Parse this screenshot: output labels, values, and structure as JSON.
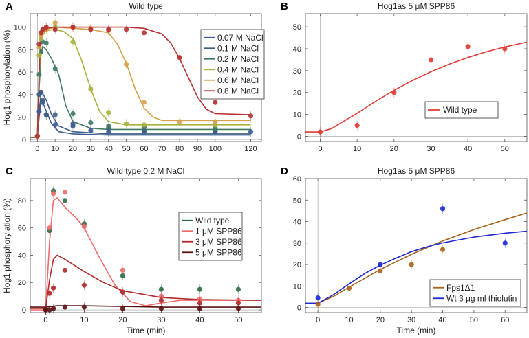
{
  "chart_data": [
    {
      "type": "line",
      "panel": "A",
      "title": "Wild type",
      "ylabel": "Hog1 phosphorylation (%)",
      "xlabel": "",
      "xlim": [
        -4,
        126
      ],
      "ylim": [
        -3,
        112
      ],
      "xticks": [
        0,
        10,
        20,
        30,
        40,
        50,
        60,
        70,
        80,
        90,
        100,
        120
      ],
      "yticks": [
        0,
        20,
        40,
        60,
        80,
        100
      ],
      "legend_position": "top-right",
      "series": [
        {
          "name": "0.07 M NaCl",
          "color": "#3a5a96",
          "x": [
            0,
            1,
            2,
            3,
            5,
            10,
            20,
            30,
            40,
            60,
            100,
            120
          ],
          "y": [
            3,
            25,
            42,
            33,
            22,
            13,
            12,
            8,
            7,
            7,
            7,
            7
          ],
          "curve": [
            [
              -4,
              2
            ],
            [
              0,
              2
            ],
            [
              1,
              20
            ],
            [
              2,
              36
            ],
            [
              3,
              33
            ],
            [
              5,
              25
            ],
            [
              8,
              14
            ],
            [
              12,
              7
            ],
            [
              20,
              5
            ],
            [
              40,
              4
            ],
            [
              120,
              4
            ]
          ]
        },
        {
          "name": "0.1 M NaCl",
          "color": "#3e5f85",
          "x": [
            0,
            1,
            2,
            3,
            5,
            10,
            20,
            40,
            60,
            100
          ],
          "y": [
            3,
            40,
            42,
            35,
            22,
            22,
            14,
            10,
            8,
            8
          ],
          "curve": [
            [
              -4,
              2
            ],
            [
              0,
              2
            ],
            [
              1,
              25
            ],
            [
              2,
              40
            ],
            [
              3,
              41
            ],
            [
              5,
              35
            ],
            [
              8,
              22
            ],
            [
              12,
              12
            ],
            [
              20,
              7
            ],
            [
              40,
              5
            ],
            [
              120,
              5
            ]
          ]
        },
        {
          "name": "0.2 M NaCl",
          "color": "#3e7a60",
          "x": [
            0,
            1,
            2,
            3,
            5,
            10,
            20,
            30,
            40,
            60,
            100
          ],
          "y": [
            3,
            58,
            78,
            87,
            86,
            63,
            23,
            15,
            12,
            11,
            10
          ],
          "curve": [
            [
              -4,
              2
            ],
            [
              0,
              2
            ],
            [
              1,
              45
            ],
            [
              2,
              75
            ],
            [
              3,
              83
            ],
            [
              5,
              80
            ],
            [
              8,
              72
            ],
            [
              12,
              58
            ],
            [
              16,
              30
            ],
            [
              20,
              16
            ],
            [
              30,
              10
            ],
            [
              40,
              9
            ],
            [
              120,
              9
            ]
          ]
        },
        {
          "name": "0.4 M NaCl",
          "color": "#a7b23a",
          "x": [
            0,
            1,
            2,
            3,
            5,
            10,
            20,
            30,
            40,
            50,
            60,
            100
          ],
          "y": [
            3,
            75,
            90,
            97,
            99,
            100,
            87,
            45,
            24,
            14,
            13,
            13
          ],
          "curve": [
            [
              -4,
              2
            ],
            [
              0,
              2
            ],
            [
              1,
              55
            ],
            [
              2,
              85
            ],
            [
              3,
              93
            ],
            [
              5,
              97
            ],
            [
              10,
              98
            ],
            [
              15,
              96
            ],
            [
              20,
              90
            ],
            [
              25,
              70
            ],
            [
              30,
              45
            ],
            [
              35,
              25
            ],
            [
              40,
              16
            ],
            [
              50,
              13
            ],
            [
              120,
              13
            ]
          ]
        },
        {
          "name": "0.6 M NaCl",
          "color": "#d7a04a",
          "x": [
            0,
            1,
            2,
            3,
            5,
            10,
            20,
            30,
            40,
            50,
            60,
            80,
            100
          ],
          "y": [
            3,
            82,
            92,
            97,
            98,
            104,
            100,
            99,
            97,
            67,
            33,
            16,
            16
          ],
          "curve": [
            [
              -4,
              2
            ],
            [
              0,
              2
            ],
            [
              1,
              60
            ],
            [
              2,
              90
            ],
            [
              3,
              95
            ],
            [
              5,
              98
            ],
            [
              10,
              100
            ],
            [
              20,
              99
            ],
            [
              30,
              98
            ],
            [
              40,
              95
            ],
            [
              45,
              85
            ],
            [
              50,
              68
            ],
            [
              55,
              45
            ],
            [
              60,
              28
            ],
            [
              65,
              20
            ],
            [
              70,
              17
            ],
            [
              120,
              17
            ]
          ]
        },
        {
          "name": "0.8 M NaCl",
          "color": "#b5302f",
          "x": [
            0,
            1,
            2,
            3,
            5,
            10,
            20,
            30,
            40,
            50,
            60,
            80,
            100,
            120
          ],
          "y": [
            3,
            85,
            95,
            98,
            100,
            98,
            100,
            98,
            98,
            98,
            95,
            73,
            33,
            21
          ],
          "curve": [
            [
              -4,
              2
            ],
            [
              0,
              2
            ],
            [
              1,
              60
            ],
            [
              2,
              92
            ],
            [
              3,
              96
            ],
            [
              5,
              99
            ],
            [
              10,
              100
            ],
            [
              30,
              100
            ],
            [
              50,
              100
            ],
            [
              60,
              99
            ],
            [
              70,
              94
            ],
            [
              75,
              86
            ],
            [
              80,
              72
            ],
            [
              85,
              55
            ],
            [
              90,
              38
            ],
            [
              95,
              27
            ],
            [
              100,
              23
            ],
            [
              120,
              22
            ]
          ]
        }
      ]
    },
    {
      "type": "line",
      "panel": "B",
      "title": "Hog1as 5 μM SPP86",
      "xlabel": "",
      "ylabel": "",
      "xlim": [
        -4,
        56
      ],
      "ylim": [
        -3,
        56
      ],
      "xticks": [
        0,
        10,
        20,
        30,
        40,
        50
      ],
      "yticks": [
        0,
        10,
        20,
        30,
        40,
        50
      ],
      "legend_position": "center-right",
      "series": [
        {
          "name": "Wild type",
          "color": "#e03a32",
          "x": [
            0,
            10,
            20,
            30,
            40,
            50
          ],
          "y": [
            2,
            5,
            20,
            35,
            41,
            40
          ],
          "curve": [
            [
              -4,
              2
            ],
            [
              0,
              2
            ],
            [
              3,
              3.5
            ],
            [
              6,
              6.5
            ],
            [
              10,
              10.5
            ],
            [
              15,
              16
            ],
            [
              20,
              21
            ],
            [
              25,
              25.5
            ],
            [
              30,
              29.5
            ],
            [
              35,
              33
            ],
            [
              40,
              36
            ],
            [
              45,
              38.6
            ],
            [
              50,
              40.8
            ],
            [
              56,
              43
            ]
          ]
        }
      ]
    },
    {
      "type": "line",
      "panel": "C",
      "title": "Wild type 0.2 M NaCl",
      "xlabel": "Time (min)",
      "ylabel": "Hog1 phosphorylation (%)",
      "xlim": [
        -4,
        56
      ],
      "ylim": [
        -3,
        96
      ],
      "xticks": [
        0,
        10,
        20,
        30,
        40,
        50
      ],
      "yticks": [
        0,
        20,
        40,
        60,
        80
      ],
      "legend_position": "center-right",
      "series": [
        {
          "name": "Wild type",
          "color": "#2f6b45",
          "x": [
            0,
            1,
            2,
            5,
            10,
            20,
            30,
            40,
            50
          ],
          "y": [
            0,
            58,
            87,
            80,
            63,
            25,
            15,
            15,
            15
          ],
          "curve": []
        },
        {
          "name": "1 μM SPP86",
          "color": "#ef6b6b",
          "x": [
            0,
            1,
            2,
            5,
            10,
            20,
            30,
            40,
            50
          ],
          "y": [
            0,
            60,
            85,
            86,
            61,
            29,
            10,
            8,
            7
          ],
          "curve": [
            [
              -4,
              0
            ],
            [
              0,
              0
            ],
            [
              1,
              50
            ],
            [
              2,
              80
            ],
            [
              3,
              82
            ],
            [
              5,
              75
            ],
            [
              8,
              67
            ],
            [
              10,
              60
            ],
            [
              14,
              38
            ],
            [
              18,
              18
            ],
            [
              22,
              6
            ],
            [
              26,
              3
            ],
            [
              30,
              5
            ],
            [
              35,
              7
            ],
            [
              56,
              7
            ]
          ]
        },
        {
          "name": "3 μM SPP86",
          "color": "#b0282a",
          "x": [
            0,
            1,
            2,
            5,
            10,
            20,
            30,
            40,
            50
          ],
          "y": [
            0,
            12,
            16,
            29,
            18,
            13,
            7,
            5,
            5
          ],
          "curve": [
            [
              -4,
              1
            ],
            [
              0,
              1
            ],
            [
              1,
              22
            ],
            [
              2,
              37
            ],
            [
              3,
              40
            ],
            [
              5,
              37
            ],
            [
              10,
              28
            ],
            [
              15,
              20
            ],
            [
              20,
              14
            ],
            [
              30,
              9
            ],
            [
              40,
              7.5
            ],
            [
              56,
              7
            ]
          ]
        },
        {
          "name": "5 μM SPP86",
          "color": "#5a1212",
          "x": [
            0,
            1,
            2,
            5,
            10,
            20,
            30,
            40,
            50
          ],
          "y": [
            0,
            0,
            1,
            2,
            2,
            1,
            1,
            1,
            1
          ],
          "curve": [
            [
              -4,
              2
            ],
            [
              0,
              2
            ],
            [
              3,
              3
            ],
            [
              10,
              3
            ],
            [
              30,
              2
            ],
            [
              56,
              2
            ]
          ]
        }
      ]
    },
    {
      "type": "line",
      "panel": "D",
      "title": "Hog1as 5 μM SPP86",
      "xlabel": "Time (min)",
      "ylabel": "",
      "xlim": [
        -4,
        67
      ],
      "ylim": [
        -3,
        60
      ],
      "xticks": [
        0,
        10,
        20,
        30,
        40,
        50,
        60
      ],
      "yticks": [
        0,
        10,
        20,
        30,
        40,
        50,
        60
      ],
      "legend_position": "bottom-right",
      "series": [
        {
          "name": "Fps1Δ1",
          "color": "#a8621c",
          "x": [
            0,
            10,
            20,
            30,
            40
          ],
          "y": [
            1.5,
            9,
            17,
            20,
            27
          ],
          "curve": [
            [
              -4,
              2
            ],
            [
              0,
              2
            ],
            [
              5,
              5.2
            ],
            [
              10,
              9.5
            ],
            [
              20,
              17.7
            ],
            [
              30,
              24.8
            ],
            [
              40,
              31
            ],
            [
              50,
              36.3
            ],
            [
              60,
              40.9
            ],
            [
              67,
              44
            ]
          ]
        },
        {
          "name": "Wt 3 μg ml thiolutin",
          "color": "#1e28d2",
          "x": [
            0,
            20,
            40,
            60
          ],
          "y": [
            4.5,
            20,
            46,
            30
          ],
          "curve": [
            [
              -4,
              2
            ],
            [
              0,
              2
            ],
            [
              5,
              6
            ],
            [
              10,
              11
            ],
            [
              15,
              15.8
            ],
            [
              20,
              19.7
            ],
            [
              25,
              23
            ],
            [
              30,
              26
            ],
            [
              35,
              28.3
            ],
            [
              40,
              30.1
            ],
            [
              50,
              32.8
            ],
            [
              60,
              34.6
            ],
            [
              67,
              35.5
            ]
          ]
        }
      ]
    }
  ],
  "panel_labels": [
    "A",
    "B",
    "C",
    "D"
  ]
}
